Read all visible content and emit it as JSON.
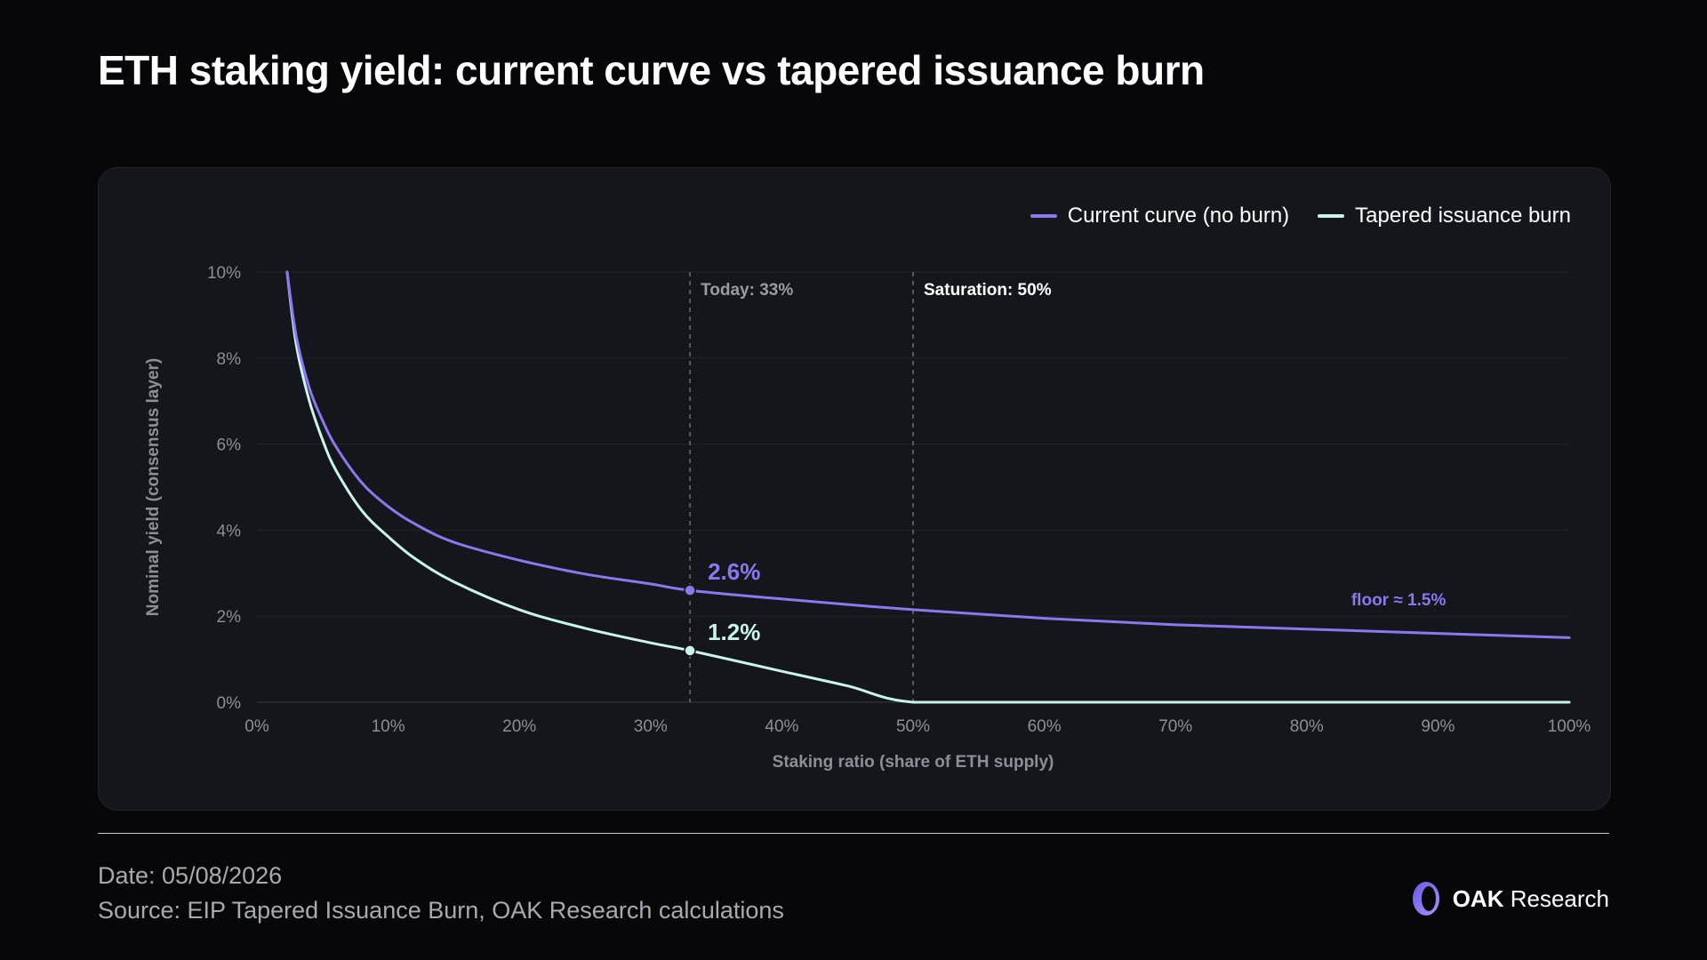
{
  "title": "ETH staking yield: current curve vs tapered issuance burn",
  "legend": [
    {
      "label": "Current curve (no burn)",
      "color": "#8b78f0"
    },
    {
      "label": "Tapered issuance burn",
      "color": "#c8f5ea"
    }
  ],
  "chart_data": {
    "type": "line",
    "title": "ETH staking yield: current curve vs tapered issuance burn",
    "xlabel": "Staking ratio (share of ETH supply)",
    "ylabel": "Nominal yield (consensus layer)",
    "xlim": [
      0,
      100
    ],
    "ylim": [
      0,
      10
    ],
    "x_ticks": [
      "0%",
      "10%",
      "20%",
      "30%",
      "40%",
      "50%",
      "60%",
      "70%",
      "80%",
      "90%",
      "100%"
    ],
    "y_ticks": [
      "0%",
      "2%",
      "4%",
      "6%",
      "8%",
      "10%"
    ],
    "grid": "horizontal",
    "legend_position": "top-right",
    "series": [
      {
        "name": "Current curve (no burn)",
        "color": "#8b78f0",
        "x": [
          2.3,
          3,
          4,
          5,
          6,
          8,
          10,
          12,
          15,
          20,
          25,
          30,
          33,
          40,
          50,
          60,
          70,
          80,
          90,
          100
        ],
        "y": [
          10.0,
          8.5,
          7.3,
          6.55,
          5.95,
          5.1,
          4.55,
          4.15,
          3.72,
          3.3,
          2.98,
          2.75,
          2.6,
          2.4,
          2.15,
          1.95,
          1.8,
          1.7,
          1.6,
          1.5
        ]
      },
      {
        "name": "Tapered issuance burn",
        "color": "#c8f5ea",
        "x": [
          2.3,
          3,
          4,
          5,
          6,
          8,
          10,
          12,
          15,
          20,
          25,
          30,
          33,
          40,
          45,
          50,
          60,
          70,
          80,
          90,
          100
        ],
        "y": [
          10.0,
          8.3,
          7.0,
          6.1,
          5.4,
          4.45,
          3.85,
          3.35,
          2.8,
          2.15,
          1.72,
          1.38,
          1.2,
          0.72,
          0.38,
          0.0,
          0.0,
          0.0,
          0.0,
          0.0,
          0.0
        ]
      }
    ],
    "reference_lines": [
      {
        "x": 33,
        "label": "Today: 33%"
      },
      {
        "x": 50,
        "label": "Saturation: 50%"
      }
    ],
    "annotations": [
      {
        "x": 33,
        "y": 2.6,
        "text": "2.6%",
        "series": 0
      },
      {
        "x": 33,
        "y": 1.2,
        "text": "1.2%",
        "series": 1
      },
      {
        "x": 87,
        "y": 2.4,
        "text": "floor ≈ 1.5%"
      }
    ]
  },
  "footer": {
    "date": "Date: 05/08/2026",
    "source": "Source: EIP Tapered Issuance Burn, OAK Research calculations"
  },
  "brand": {
    "name_bold": "OAK",
    "name_rest": "Research",
    "logo_icon": "oak-ring-icon"
  }
}
